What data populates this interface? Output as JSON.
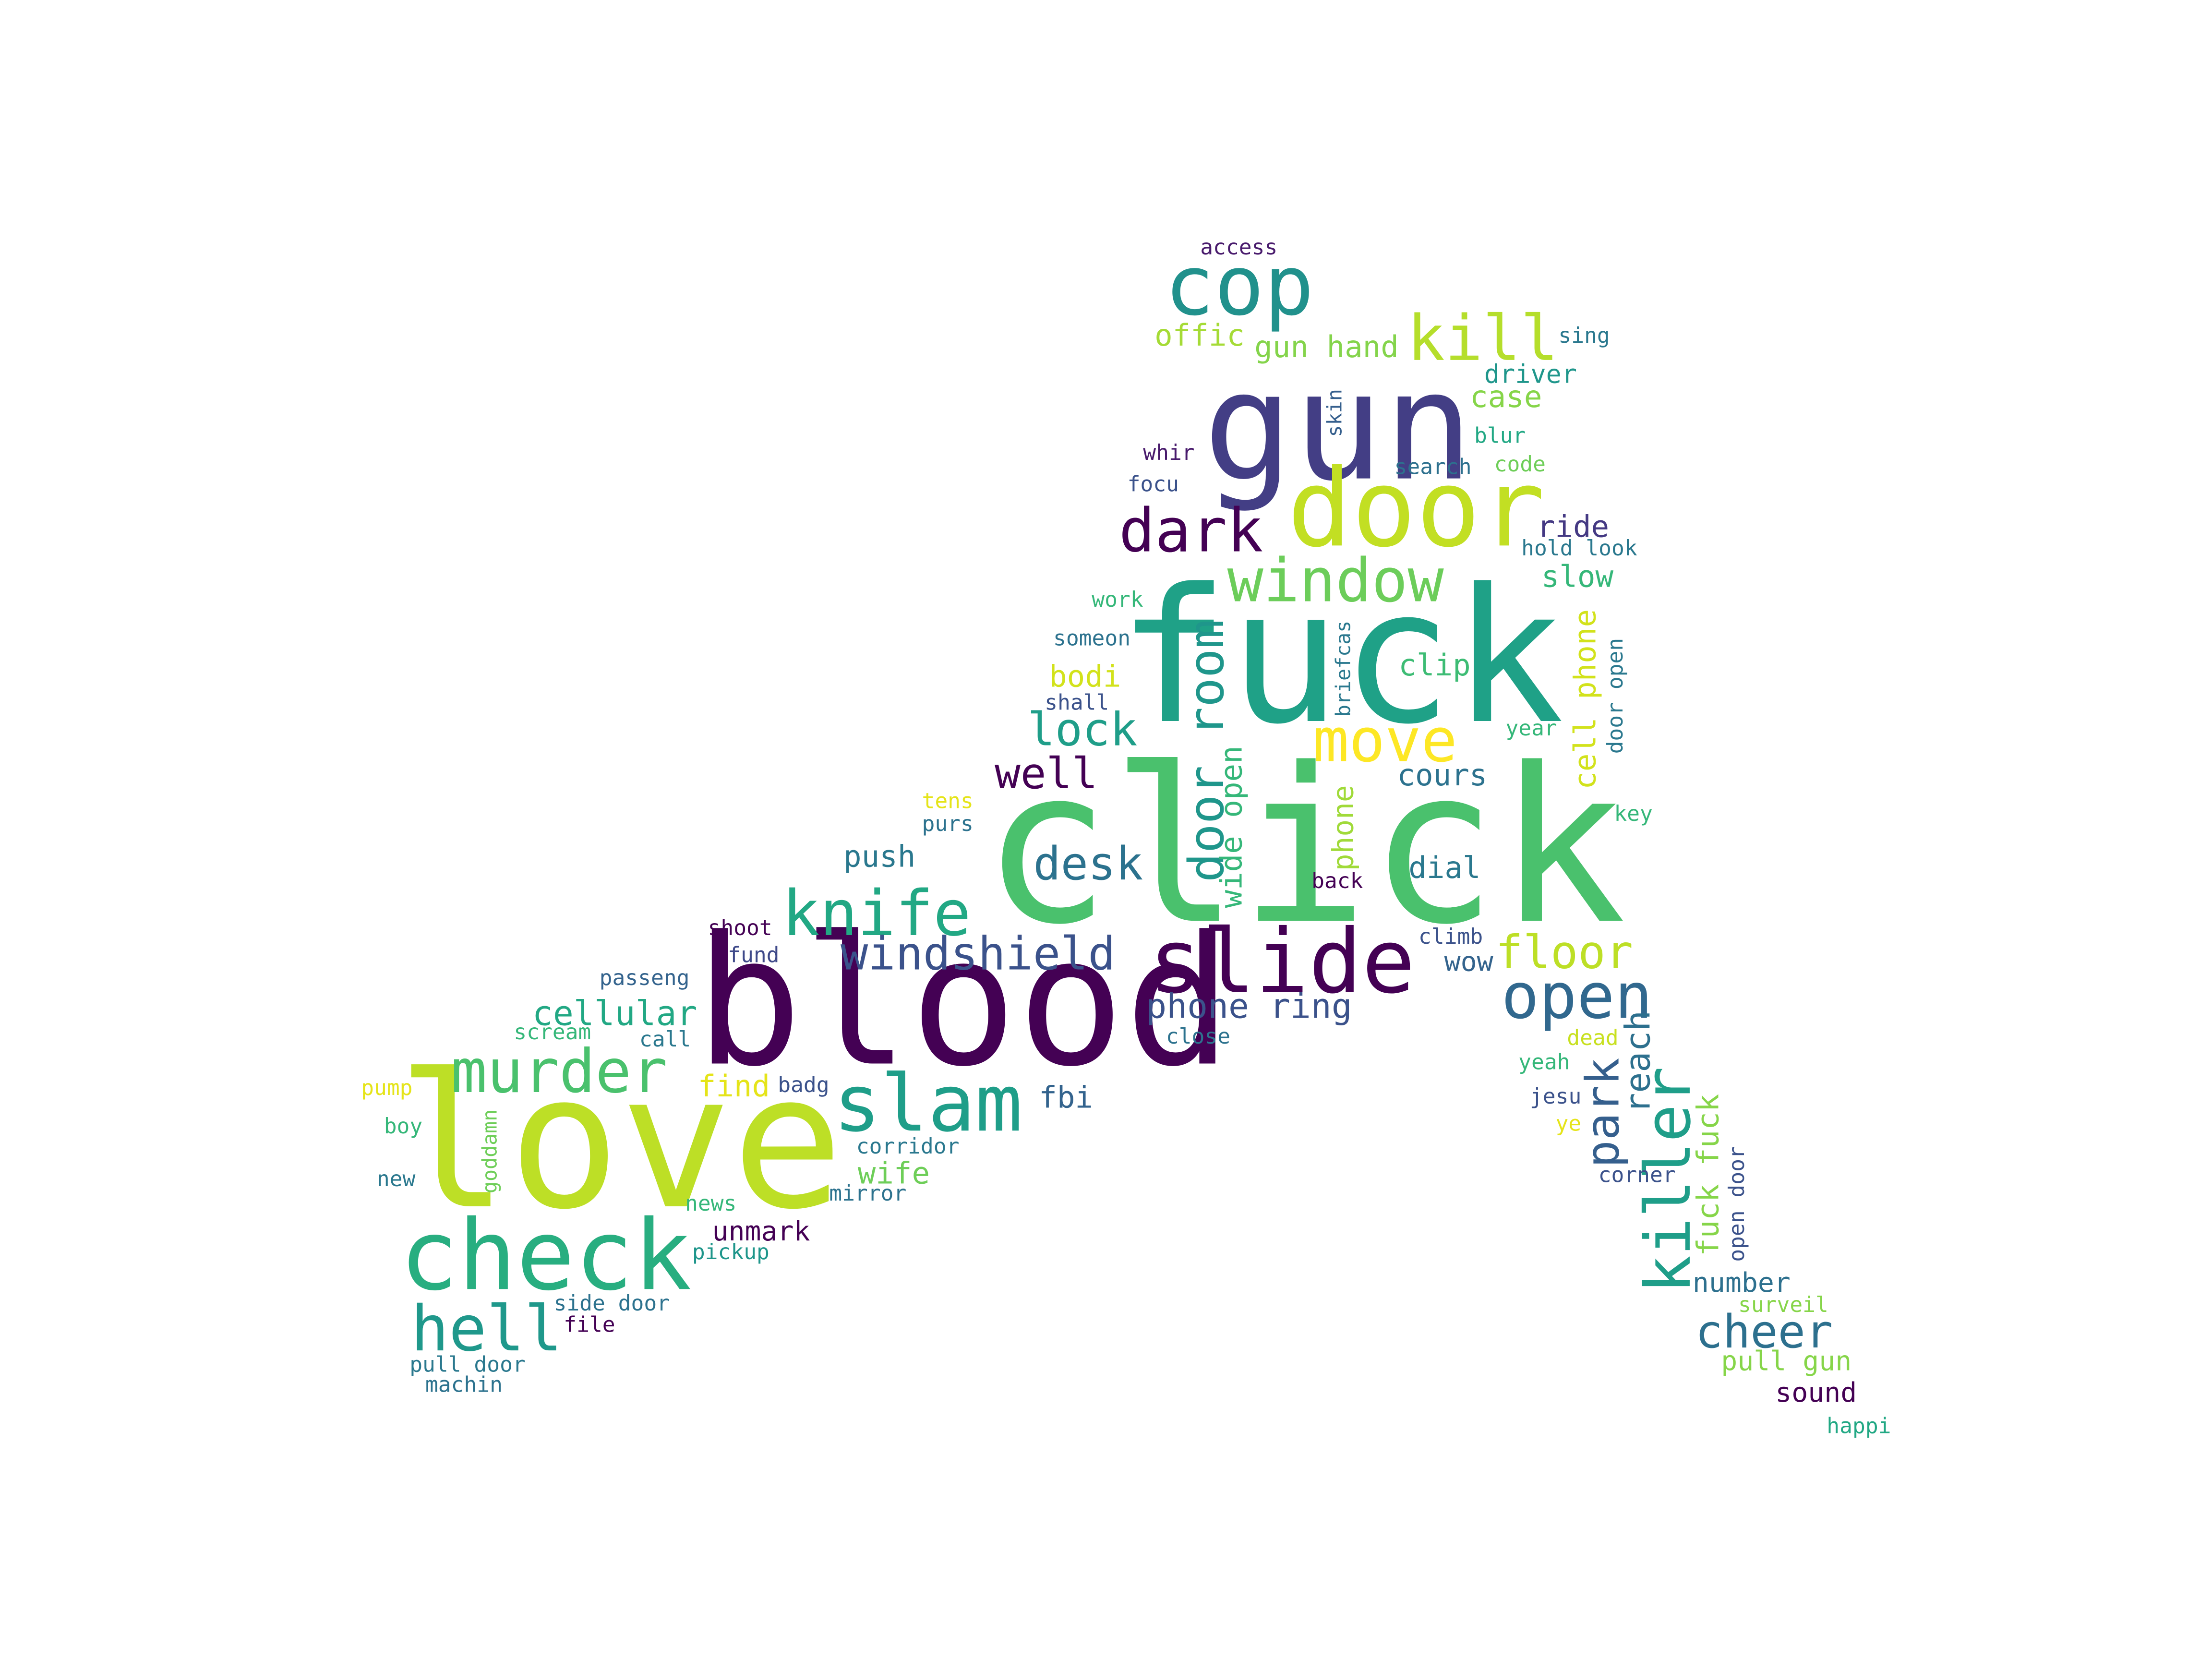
{
  "words": [
    {
      "text": "click",
      "color": "#4ac16d"
    },
    {
      "text": "fuck",
      "color": "#1fa187"
    },
    {
      "text": "blood",
      "color": "#440154"
    },
    {
      "text": "love",
      "color": "#bddf26"
    },
    {
      "text": "gun",
      "color": "#433e85"
    },
    {
      "text": "door",
      "color": "#c2df23"
    },
    {
      "text": "check",
      "color": "#28ae80"
    },
    {
      "text": "slide",
      "color": "#440154"
    },
    {
      "text": "cop",
      "color": "#21918c"
    },
    {
      "text": "slam",
      "color": "#1f9e89"
    },
    {
      "text": "murder",
      "color": "#4ac16d"
    },
    {
      "text": "knife",
      "color": "#22a884"
    },
    {
      "text": "open",
      "color": "#31688e"
    },
    {
      "text": "hell",
      "color": "#1f988b"
    },
    {
      "text": "kill",
      "color": "#b5de2b"
    },
    {
      "text": "window",
      "color": "#6ccd5a"
    },
    {
      "text": "move",
      "color": "#fde725"
    },
    {
      "text": "dark",
      "color": "#440154"
    },
    {
      "text": "killer",
      "color": "#1f9e89"
    },
    {
      "text": "door room",
      "color": "#1f968b"
    },
    {
      "text": "windshield",
      "color": "#3b528b"
    },
    {
      "text": "desk",
      "color": "#2c728e"
    },
    {
      "text": "floor",
      "color": "#bddf26"
    },
    {
      "text": "park",
      "color": "#355f8d"
    },
    {
      "text": "cheer",
      "color": "#2d708e"
    },
    {
      "text": "lock",
      "color": "#1f9e89"
    },
    {
      "text": "well",
      "color": "#440154"
    },
    {
      "text": "phone ring",
      "color": "#3b528b"
    },
    {
      "text": "cellular",
      "color": "#22a884"
    },
    {
      "text": "reach",
      "color": "#2d708e"
    },
    {
      "text": "wide open",
      "color": "#35b779"
    },
    {
      "text": "gun hand",
      "color": "#84d44b"
    },
    {
      "text": "offic",
      "color": "#a5db36"
    },
    {
      "text": "cell phone",
      "color": "#d2e21b"
    },
    {
      "text": "fuck fuck",
      "color": "#86d549"
    },
    {
      "text": "push",
      "color": "#2a788e"
    },
    {
      "text": "fbi",
      "color": "#33638d"
    },
    {
      "text": "wife",
      "color": "#6ece58"
    },
    {
      "text": "find",
      "color": "#e5e419"
    },
    {
      "text": "slow",
      "color": "#35b779"
    },
    {
      "text": "clip",
      "color": "#3dbc74"
    },
    {
      "text": "cours",
      "color": "#2c728e"
    },
    {
      "text": "dial",
      "color": "#2a788e"
    },
    {
      "text": "bodi",
      "color": "#d2e21b"
    },
    {
      "text": "ride",
      "color": "#443983"
    },
    {
      "text": "driver",
      "color": "#1f968b"
    },
    {
      "text": "case",
      "color": "#86d549"
    },
    {
      "text": "phone",
      "color": "#a0da39"
    },
    {
      "text": "unmark",
      "color": "#440154"
    },
    {
      "text": "number",
      "color": "#2d708e"
    },
    {
      "text": "sound",
      "color": "#440154"
    },
    {
      "text": "pull gun",
      "color": "#86d549"
    },
    {
      "text": "wow",
      "color": "#33638d"
    },
    {
      "text": "access",
      "color": "#481a6c"
    },
    {
      "text": "sing",
      "color": "#2a788e"
    },
    {
      "text": "skin",
      "color": "#355f8d"
    },
    {
      "text": "blur",
      "color": "#22a884"
    },
    {
      "text": "whir",
      "color": "#481a6c"
    },
    {
      "text": "search",
      "color": "#2d708e"
    },
    {
      "text": "code",
      "color": "#6ece58"
    },
    {
      "text": "focu",
      "color": "#3b528b"
    },
    {
      "text": "hold look",
      "color": "#2a788e"
    },
    {
      "text": "work",
      "color": "#35b779"
    },
    {
      "text": "someon",
      "color": "#2c728e"
    },
    {
      "text": "briefcas",
      "color": "#2a788e"
    },
    {
      "text": "door open",
      "color": "#2a788e"
    },
    {
      "text": "shall",
      "color": "#3b528b"
    },
    {
      "text": "year",
      "color": "#35b779"
    },
    {
      "text": "tens",
      "color": "#e5e419"
    },
    {
      "text": "purs",
      "color": "#2c728e"
    },
    {
      "text": "key",
      "color": "#35b779"
    },
    {
      "text": "back",
      "color": "#440154"
    },
    {
      "text": "shoot",
      "color": "#440154"
    },
    {
      "text": "fund",
      "color": "#3e4989"
    },
    {
      "text": "climb",
      "color": "#3b528b"
    },
    {
      "text": "passeng",
      "color": "#33638d"
    },
    {
      "text": "close",
      "color": "#2c728e"
    },
    {
      "text": "dead",
      "color": "#c8e020"
    },
    {
      "text": "scream",
      "color": "#35b779"
    },
    {
      "text": "call",
      "color": "#2a788e"
    },
    {
      "text": "yeah",
      "color": "#35b779"
    },
    {
      "text": "pump",
      "color": "#e5e419"
    },
    {
      "text": "badg",
      "color": "#3b528b"
    },
    {
      "text": "jesu",
      "color": "#3b528b"
    },
    {
      "text": "boy",
      "color": "#35b779"
    },
    {
      "text": "goddamn",
      "color": "#6ece58"
    },
    {
      "text": "corridor",
      "color": "#2a788e"
    },
    {
      "text": "ye",
      "color": "#e5e419"
    },
    {
      "text": "new",
      "color": "#2a788e"
    },
    {
      "text": "corner",
      "color": "#3b528b"
    },
    {
      "text": "open door",
      "color": "#3b528b"
    },
    {
      "text": "mirror",
      "color": "#2c728e"
    },
    {
      "text": "news",
      "color": "#35b779"
    },
    {
      "text": "pickup",
      "color": "#1f968b"
    },
    {
      "text": "side door",
      "color": "#2c728e"
    },
    {
      "text": "file",
      "color": "#440154"
    },
    {
      "text": "pull door",
      "color": "#2a788e"
    },
    {
      "text": "machin",
      "color": "#2c728e"
    },
    {
      "text": "surveil",
      "color": "#86d549"
    },
    {
      "text": "happi",
      "color": "#22a884"
    }
  ]
}
